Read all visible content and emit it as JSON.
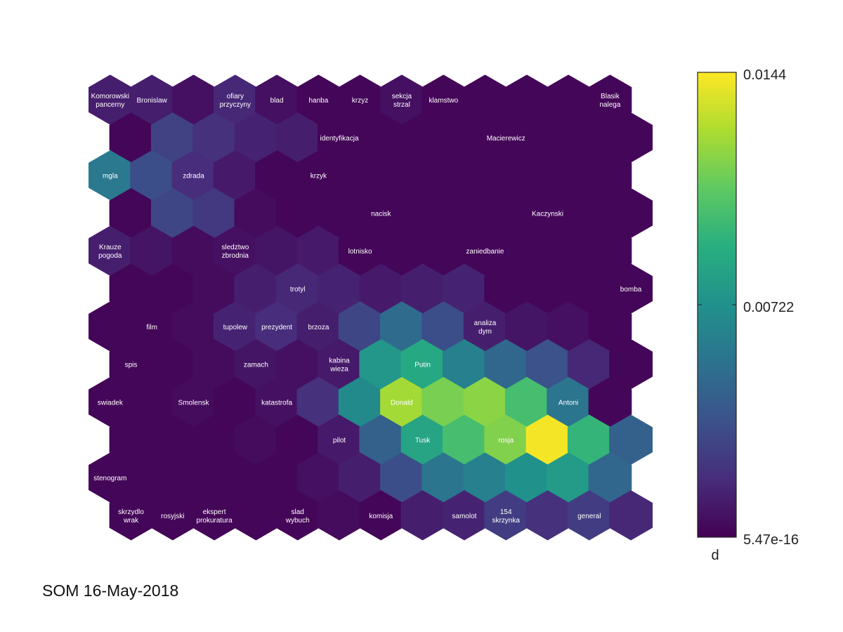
{
  "chart_data": {
    "type": "heatmap",
    "subtype": "hexagonal-som-u-matrix",
    "rows": 12,
    "cols": 13,
    "value_range": [
      5.47e-16,
      0.0144
    ],
    "colormap": "viridis",
    "values": [
      [
        0.0012,
        0.0012,
        0.0006,
        0.0016,
        0.0006,
        0.0002,
        0.0002,
        0.0006,
        0.0002,
        0.0002,
        0.0002,
        0.0002,
        0.0002
      ],
      [
        0.0002,
        0.0028,
        0.002,
        0.0014,
        0.0012,
        0.0002,
        0.0002,
        0.0002,
        0.0002,
        0.0002,
        0.0002,
        0.0002,
        0.0002
      ],
      [
        0.0058,
        0.0034,
        0.0018,
        0.001,
        0.0002,
        0.0002,
        0.0002,
        0.0002,
        0.0002,
        0.0002,
        0.0002,
        0.0002,
        0.0002
      ],
      [
        0.0002,
        0.003,
        0.0024,
        0.0004,
        0.0002,
        0.0002,
        0.0002,
        0.0002,
        0.0002,
        0.0002,
        0.0002,
        0.0002,
        0.0002
      ],
      [
        0.0012,
        0.0008,
        0.0004,
        0.0006,
        0.0008,
        0.001,
        0.0002,
        0.0002,
        0.0002,
        0.0002,
        0.0002,
        0.0002,
        0.0002
      ],
      [
        0.0002,
        0.0002,
        0.0004,
        0.0012,
        0.0016,
        0.0014,
        0.001,
        0.0012,
        0.0014,
        0.0002,
        0.0002,
        0.0002,
        0.0002
      ],
      [
        0.0002,
        0.0002,
        0.0004,
        0.0014,
        0.0018,
        0.0012,
        0.003,
        0.005,
        0.0034,
        0.0012,
        0.0008,
        0.0006,
        0.0002
      ],
      [
        0.0002,
        0.0002,
        0.0004,
        0.0008,
        0.0006,
        0.001,
        0.0076,
        0.0086,
        0.0062,
        0.0048,
        0.0036,
        0.0016,
        0.0002
      ],
      [
        0.0002,
        0.0002,
        0.0004,
        0.0002,
        0.0006,
        0.002,
        0.0068,
        0.0124,
        0.0114,
        0.0118,
        0.01,
        0.0056,
        0.0002
      ],
      [
        0.0002,
        0.0002,
        0.0002,
        0.0004,
        0.0002,
        0.001,
        0.0044,
        0.0084,
        0.01,
        0.0116,
        0.0142,
        0.0094,
        0.0044
      ],
      [
        0.0002,
        0.0002,
        0.0002,
        0.0002,
        0.0002,
        0.0006,
        0.0012,
        0.0034,
        0.0056,
        0.0062,
        0.0072,
        0.0078,
        0.0048
      ],
      [
        0.0002,
        0.0002,
        0.0002,
        0.0002,
        0.0002,
        0.0004,
        0.0002,
        0.0012,
        0.0014,
        0.0026,
        0.002,
        0.0026,
        0.0016
      ]
    ],
    "labels": [
      {
        "row": 0,
        "col": 0,
        "lines": [
          "Komorowski",
          "pancerny"
        ]
      },
      {
        "row": 0,
        "col": 1,
        "lines": [
          "Bronislaw"
        ]
      },
      {
        "row": 0,
        "col": 3,
        "lines": [
          "ofiary",
          "przyczyny"
        ]
      },
      {
        "row": 0,
        "col": 4,
        "lines": [
          "blad"
        ]
      },
      {
        "row": 0,
        "col": 5,
        "lines": [
          "hanba"
        ]
      },
      {
        "row": 0,
        "col": 6,
        "lines": [
          "krzyz"
        ]
      },
      {
        "row": 0,
        "col": 7,
        "lines": [
          "sekcja",
          "strzal"
        ]
      },
      {
        "row": 0,
        "col": 8,
        "lines": [
          "klamstwo"
        ]
      },
      {
        "row": 0,
        "col": 12,
        "lines": [
          "Blasik",
          "nalega"
        ]
      },
      {
        "row": 1,
        "col": 5,
        "lines": [
          "identyfikacja"
        ]
      },
      {
        "row": 1,
        "col": 9,
        "lines": [
          "Macierewicz"
        ]
      },
      {
        "row": 2,
        "col": 0,
        "lines": [
          "mgla"
        ]
      },
      {
        "row": 2,
        "col": 2,
        "lines": [
          "zdrada"
        ]
      },
      {
        "row": 2,
        "col": 5,
        "lines": [
          "krzyk"
        ]
      },
      {
        "row": 3,
        "col": 6,
        "lines": [
          "nacisk"
        ]
      },
      {
        "row": 3,
        "col": 10,
        "lines": [
          "Kaczynski"
        ]
      },
      {
        "row": 4,
        "col": 0,
        "lines": [
          "Krauze",
          "pogoda"
        ]
      },
      {
        "row": 4,
        "col": 3,
        "lines": [
          "sledztwo",
          "zbrodnia"
        ]
      },
      {
        "row": 4,
        "col": 6,
        "lines": [
          "lotnisko"
        ]
      },
      {
        "row": 4,
        "col": 9,
        "lines": [
          "zaniedbanie"
        ]
      },
      {
        "row": 5,
        "col": 4,
        "lines": [
          "trotyl"
        ]
      },
      {
        "row": 5,
        "col": 12,
        "lines": [
          "bomba"
        ]
      },
      {
        "row": 6,
        "col": 1,
        "lines": [
          "film"
        ]
      },
      {
        "row": 6,
        "col": 3,
        "lines": [
          "tupolew"
        ]
      },
      {
        "row": 6,
        "col": 4,
        "lines": [
          "prezydent"
        ]
      },
      {
        "row": 6,
        "col": 5,
        "lines": [
          "brzoza"
        ]
      },
      {
        "row": 6,
        "col": 9,
        "lines": [
          "analiza",
          "dym"
        ]
      },
      {
        "row": 7,
        "col": 0,
        "lines": [
          "spis"
        ]
      },
      {
        "row": 7,
        "col": 3,
        "lines": [
          "zamach"
        ]
      },
      {
        "row": 7,
        "col": 5,
        "lines": [
          "kabina",
          "wieza"
        ]
      },
      {
        "row": 7,
        "col": 7,
        "lines": [
          "Putin"
        ]
      },
      {
        "row": 8,
        "col": 0,
        "lines": [
          "swiadek"
        ]
      },
      {
        "row": 8,
        "col": 2,
        "lines": [
          "Smolensk"
        ]
      },
      {
        "row": 8,
        "col": 4,
        "lines": [
          "katastrofa"
        ]
      },
      {
        "row": 8,
        "col": 7,
        "lines": [
          "Donald"
        ]
      },
      {
        "row": 8,
        "col": 11,
        "lines": [
          "Antoni"
        ]
      },
      {
        "row": 9,
        "col": 5,
        "lines": [
          "pilot"
        ]
      },
      {
        "row": 9,
        "col": 7,
        "lines": [
          "Tusk"
        ]
      },
      {
        "row": 9,
        "col": 9,
        "lines": [
          "rosja"
        ]
      },
      {
        "row": 10,
        "col": 0,
        "lines": [
          "stenogram"
        ]
      },
      {
        "row": 11,
        "col": 0,
        "lines": [
          "skrzydlo",
          "wrak"
        ]
      },
      {
        "row": 11,
        "col": 1,
        "lines": [
          "rosyjski"
        ]
      },
      {
        "row": 11,
        "col": 2,
        "lines": [
          "ekspert",
          "prokuratura"
        ]
      },
      {
        "row": 11,
        "col": 4,
        "lines": [
          "slad",
          "wybuch"
        ]
      },
      {
        "row": 11,
        "col": 6,
        "lines": [
          "komisja"
        ]
      },
      {
        "row": 11,
        "col": 8,
        "lines": [
          "samolot"
        ]
      },
      {
        "row": 11,
        "col": 9,
        "lines": [
          "154",
          "skrzynka"
        ]
      },
      {
        "row": 11,
        "col": 11,
        "lines": [
          "general"
        ]
      }
    ],
    "colorbar": {
      "ticks": [
        "0.0144",
        "0.00722",
        "5.47e-16"
      ],
      "label": "d"
    }
  },
  "footer": "SOM 16-May-2018"
}
